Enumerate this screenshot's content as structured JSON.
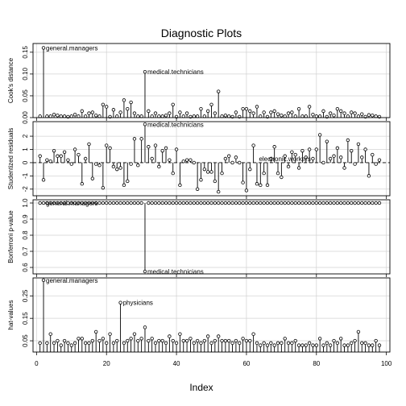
{
  "title": "Diagnostic Plots",
  "xlabel": "Index",
  "chart_data": [
    {
      "type": "scatter",
      "ylabel": "Cook's distance",
      "xlim": [
        1,
        98
      ],
      "ylim": [
        0,
        0.17
      ],
      "yticks": [
        "0.00",
        "0.05",
        "0.10",
        "0.15"
      ],
      "ytick_values": [
        0,
        0.05,
        0.1,
        0.15
      ],
      "baseline": 0,
      "values": [
        0.003,
        0.16,
        0.003,
        0.003,
        0.007,
        0.005,
        0.003,
        0.003,
        0.002,
        0.003,
        0.007,
        0.003,
        0.015,
        0.003,
        0.01,
        0.012,
        0.005,
        0.003,
        0.03,
        0.025,
        0.002,
        0.018,
        0.003,
        0.012,
        0.04,
        0.02,
        0.035,
        0.01,
        0.003,
        0.003,
        0.105,
        0.015,
        0.003,
        0.01,
        0.003,
        0.003,
        0.005,
        0.01,
        0.03,
        0.002,
        0.012,
        0.003,
        0.01,
        0.002,
        0.003,
        0.003,
        0.02,
        0.003,
        0.015,
        0.03,
        0.01,
        0.06,
        0.003,
        0.005,
        0.003,
        0.002,
        0.012,
        0.002,
        0.02,
        0.02,
        0.015,
        0.01,
        0.025,
        0.003,
        0.012,
        0.002,
        0.012,
        0.015,
        0.008,
        0.005,
        0.003,
        0.01,
        0.012,
        0.003,
        0.02,
        0.003,
        0.003,
        0.025,
        0.007,
        0.003,
        0.003,
        0.015,
        0.002,
        0.01,
        0.005,
        0.02,
        0.015,
        0.01,
        0.003,
        0.012,
        0.01,
        0.003,
        0.008,
        0.002,
        0.006,
        0.005,
        0.003,
        0.002
      ],
      "annotations": [
        {
          "index": 2,
          "text": "general.managers"
        },
        {
          "index": 31,
          "text": "medical.technicians"
        }
      ]
    },
    {
      "type": "scatter",
      "ylabel": "Studentized residuals",
      "xlim": [
        1,
        98
      ],
      "ylim": [
        -2.5,
        3.1
      ],
      "yticks": [
        "-2",
        "-1",
        "0",
        "1",
        "2"
      ],
      "ytick_values": [
        -2,
        -1,
        0,
        1,
        2
      ],
      "baseline": 0,
      "refline": 0,
      "values": [
        0.5,
        -1.3,
        0.2,
        0.1,
        0.9,
        0.5,
        0.5,
        0.8,
        0.2,
        -0.1,
        1.0,
        0.6,
        -1.6,
        0.3,
        1.4,
        -1.2,
        -0.1,
        -0.2,
        -1.9,
        1.3,
        1.1,
        -0.3,
        -0.5,
        -0.4,
        -1.7,
        -1.4,
        -0.1,
        1.8,
        -0.2,
        1.8,
        2.9,
        1.2,
        0.3,
        1.3,
        -0.3,
        0.9,
        1.1,
        0.2,
        -0.8,
        1.0,
        -1.7,
        0.1,
        0.2,
        0.2,
        0.0,
        -2.0,
        -1.3,
        -0.5,
        -0.7,
        -0.7,
        -1.4,
        -2.2,
        -0.8,
        0.3,
        0.5,
        0.0,
        0.4,
        0.0,
        -1.5,
        -2.1,
        -0.5,
        1.3,
        -1.6,
        -1.7,
        -0.8,
        -1.7,
        0.3,
        1.2,
        -0.8,
        -1.1,
        0.5,
        -0.3,
        0.8,
        0.6,
        -0.4,
        0.9,
        0.4,
        1.0,
        0.3,
        1.0,
        2.1,
        0.0,
        1.6,
        0.3,
        0.5,
        1.1,
        0.4,
        -0.4,
        1.7,
        0.9,
        -0.1,
        1.4,
        0.4,
        1.0,
        -1.0,
        0.6,
        -0.1,
        0.2
      ],
      "annotations": [
        {
          "index": 31,
          "text": "medical.technicians"
        },
        {
          "index": 79,
          "text": "electronic.workers"
        }
      ]
    },
    {
      "type": "scatter",
      "ylabel": "Bonferroni p-value",
      "xlim": [
        1,
        98
      ],
      "ylim": [
        0.56,
        1.02
      ],
      "yticks": [
        "0.6",
        "0.7",
        "0.8",
        "0.9",
        "1.0"
      ],
      "ytick_values": [
        0.6,
        0.7,
        0.8,
        0.9,
        1.0
      ],
      "baseline": 1.0,
      "default_value": 1.0,
      "exceptions": [
        {
          "index": 31,
          "value": 0.575
        }
      ],
      "annotations": [
        {
          "index": 2,
          "text": "general.managers"
        },
        {
          "index": 31,
          "text": "medical.technicians"
        }
      ]
    },
    {
      "type": "scatter",
      "ylabel": "hat-values",
      "xlim": [
        1,
        98
      ],
      "ylim": [
        0.0,
        0.33
      ],
      "yticks": [
        "0.05",
        "0.15",
        "0.25"
      ],
      "ytick_values": [
        0.05,
        0.15,
        0.25
      ],
      "baseline": 0,
      "values": [
        0.04,
        0.32,
        0.04,
        0.08,
        0.04,
        0.05,
        0.03,
        0.05,
        0.04,
        0.03,
        0.04,
        0.06,
        0.06,
        0.04,
        0.04,
        0.05,
        0.09,
        0.05,
        0.06,
        0.04,
        0.08,
        0.04,
        0.05,
        0.22,
        0.04,
        0.05,
        0.06,
        0.08,
        0.05,
        0.06,
        0.11,
        0.05,
        0.06,
        0.04,
        0.05,
        0.05,
        0.04,
        0.07,
        0.05,
        0.04,
        0.08,
        0.05,
        0.05,
        0.06,
        0.04,
        0.05,
        0.04,
        0.05,
        0.07,
        0.04,
        0.05,
        0.07,
        0.05,
        0.05,
        0.05,
        0.04,
        0.05,
        0.04,
        0.06,
        0.05,
        0.05,
        0.08,
        0.04,
        0.03,
        0.04,
        0.03,
        0.04,
        0.03,
        0.04,
        0.04,
        0.06,
        0.04,
        0.04,
        0.05,
        0.03,
        0.03,
        0.03,
        0.04,
        0.03,
        0.03,
        0.06,
        0.03,
        0.04,
        0.03,
        0.05,
        0.04,
        0.06,
        0.03,
        0.03,
        0.04,
        0.05,
        0.09,
        0.04,
        0.04,
        0.03,
        0.03,
        0.05,
        0.03
      ],
      "annotations": [
        {
          "index": 2,
          "text": "general.managers"
        },
        {
          "index": 24,
          "text": "physicians"
        }
      ]
    }
  ],
  "xticks": [
    "0",
    "20",
    "40",
    "60",
    "80",
    "100"
  ],
  "xtick_values": [
    0,
    20,
    40,
    60,
    80,
    100
  ]
}
